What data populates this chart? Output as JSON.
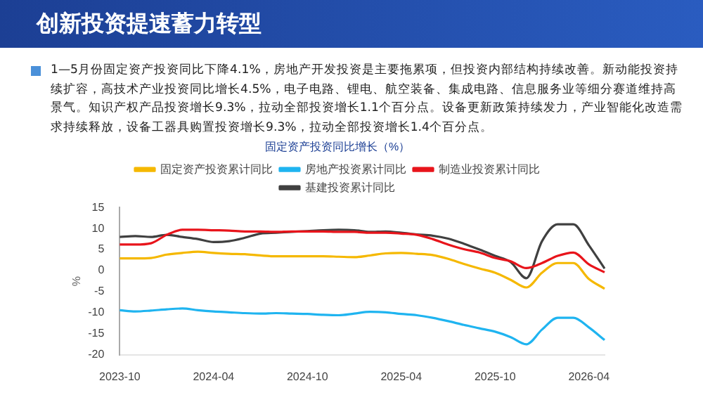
{
  "chart_data": {
    "type": "line",
    "title": "创新投资提速蓄力转型",
    "subtitle": "固定资产投资同比增长（%）",
    "ylabel": "%",
    "annotations": [
      "1—5月份固定资产投资同比下降4.1%，房地产开发投资是主要拖累项，但投资内部结构持续改善。新动能投资持续扩容，高技术产业投资同比增长4.5%，电子电路、锂电、航空装备、集成电路、信息服务业等细分赛道维持高景气。知识产权产品投资增长9.3%，拉动全部投资增长1.1个百分点。设备更新政策持续发力，产业智能化改造需求持续释放，设备工器具购置投资增长9.3%，拉动全部投资增长1.4个百分点。"
    ],
    "categories": [
      "2023-10",
      null,
      null,
      null,
      null,
      null,
      "2024-04",
      null,
      null,
      null,
      null,
      null,
      "2024-10",
      null,
      null,
      null,
      null,
      null,
      "2025-04",
      null,
      null,
      null,
      null,
      null,
      "2025-10",
      null,
      null,
      null,
      null,
      null,
      "2026-04",
      null
    ],
    "series": [
      {
        "name": "固定资产投资累计同比",
        "color": "#f5b800",
        "values": [
          2.9,
          2.9,
          3.0,
          3.8,
          4.2,
          4.5,
          4.2,
          4.0,
          3.9,
          3.6,
          3.4,
          3.4,
          3.4,
          3.4,
          3.3,
          3.2,
          3.6,
          4.1,
          4.2,
          4.0,
          3.7,
          2.8,
          1.6,
          0.5,
          -0.5,
          -2.2,
          -4.0,
          -0.5,
          1.8,
          1.8,
          -2.0,
          -4.3
        ]
      },
      {
        "name": "房地产投资累计同比",
        "color": "#1fb4f0",
        "values": [
          -9.4,
          -9.7,
          -9.5,
          -9.2,
          -9.0,
          -9.4,
          -9.7,
          -9.9,
          -10.1,
          -10.2,
          -10.1,
          -10.2,
          -10.3,
          -10.5,
          -10.6,
          -10.2,
          -9.8,
          -9.9,
          -10.3,
          -10.6,
          -11.2,
          -12.0,
          -12.9,
          -13.7,
          -14.5,
          -15.8,
          -17.5,
          -14.0,
          -11.2,
          -11.2,
          -13.5,
          -16.5
        ]
      },
      {
        "name": "制造业投资累计同比",
        "color": "#e8141b",
        "values": [
          6.2,
          6.2,
          6.5,
          8.5,
          9.7,
          9.7,
          9.6,
          9.5,
          9.3,
          9.3,
          9.2,
          9.3,
          9.3,
          9.3,
          9.2,
          9.2,
          9.0,
          9.0,
          8.8,
          8.5,
          7.5,
          6.2,
          5.1,
          4.3,
          3.0,
          2.2,
          0.6,
          1.8,
          3.5,
          4.3,
          1.5,
          -0.4
        ]
      },
      {
        "name": "基建投资累计同比",
        "color": "#404040",
        "values": [
          8.0,
          8.2,
          8.0,
          8.5,
          8.0,
          7.5,
          6.8,
          7.0,
          7.8,
          8.8,
          9.0,
          9.2,
          9.4,
          9.6,
          9.7,
          9.6,
          9.2,
          9.3,
          9.0,
          8.6,
          8.3,
          7.6,
          6.4,
          5.0,
          3.5,
          2.0,
          -1.8,
          7.0,
          11.0,
          11.0,
          6.0,
          0.5
        ]
      }
    ],
    "ylim": [
      -20,
      15
    ],
    "yticks": [
      -20,
      -15,
      -10,
      -5,
      0,
      5,
      10,
      15
    ],
    "legend": "top",
    "marker": "none"
  }
}
